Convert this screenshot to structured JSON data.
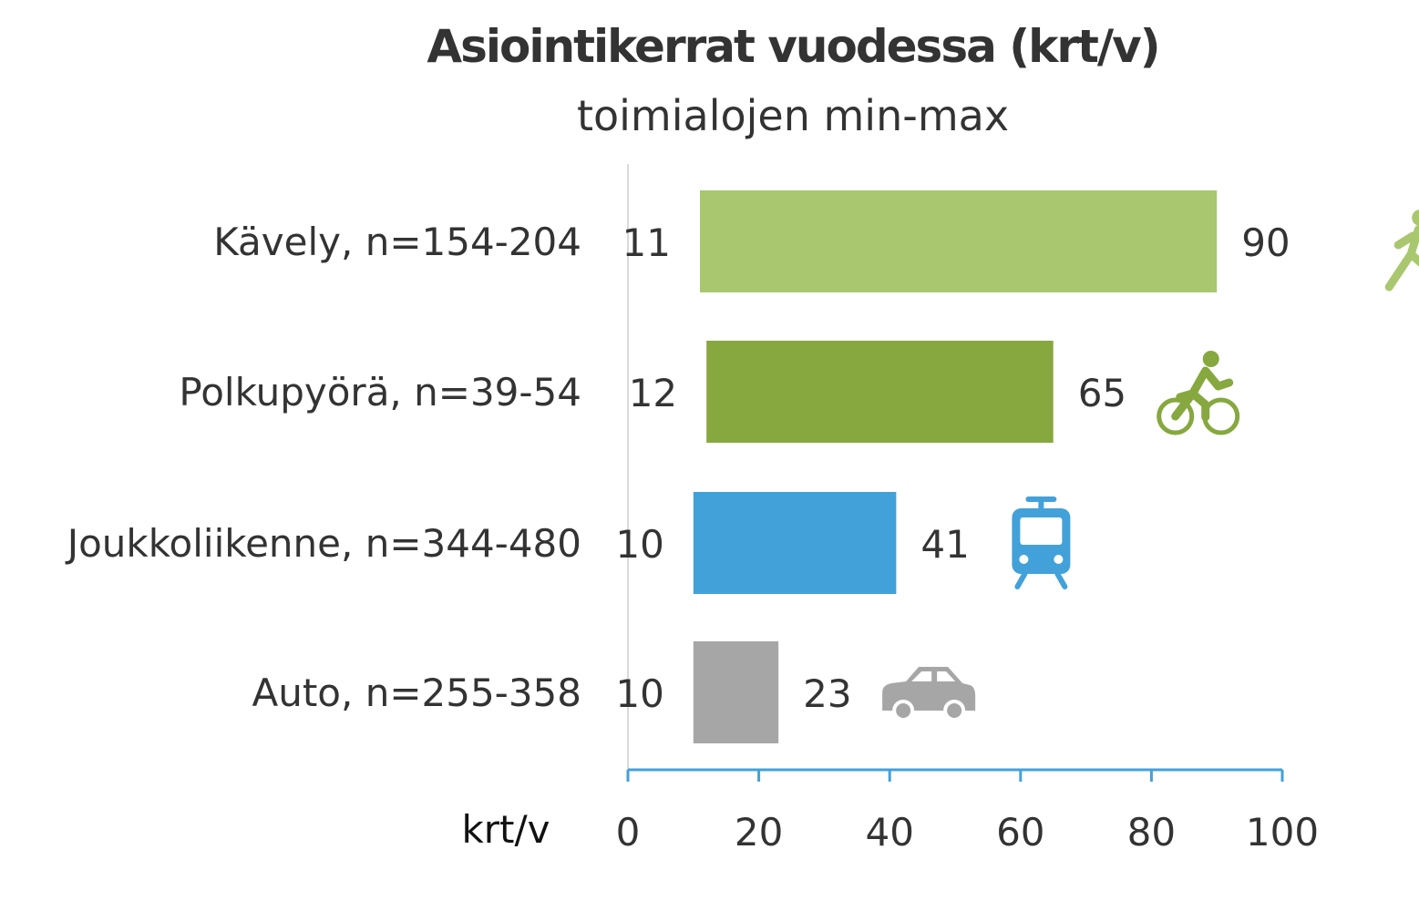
{
  "chart_data": {
    "type": "bar",
    "title": "Asiointikerrat vuodessa (krt/v)",
    "subtitle": "toimialojen min-max",
    "xlabel": "krt/v",
    "xlim": [
      0,
      100
    ],
    "xticks": [
      0,
      20,
      40,
      60,
      80,
      100
    ],
    "grid": false,
    "categories": [
      "Kävely, n=154-204",
      "Polkupyörä, n=39-54",
      "Joukkoliikenne, n=344-480",
      "Auto, n=255-358"
    ],
    "min": [
      11,
      12,
      10,
      10
    ],
    "max": [
      90,
      65,
      41,
      23
    ],
    "colors": [
      "#a9c76f",
      "#86a83f",
      "#43a1d9",
      "#a6a6a6"
    ],
    "icons": [
      "walking-person-icon",
      "bicycle-icon",
      "tram-icon",
      "car-icon"
    ],
    "axis_color": "#43a1d9"
  }
}
